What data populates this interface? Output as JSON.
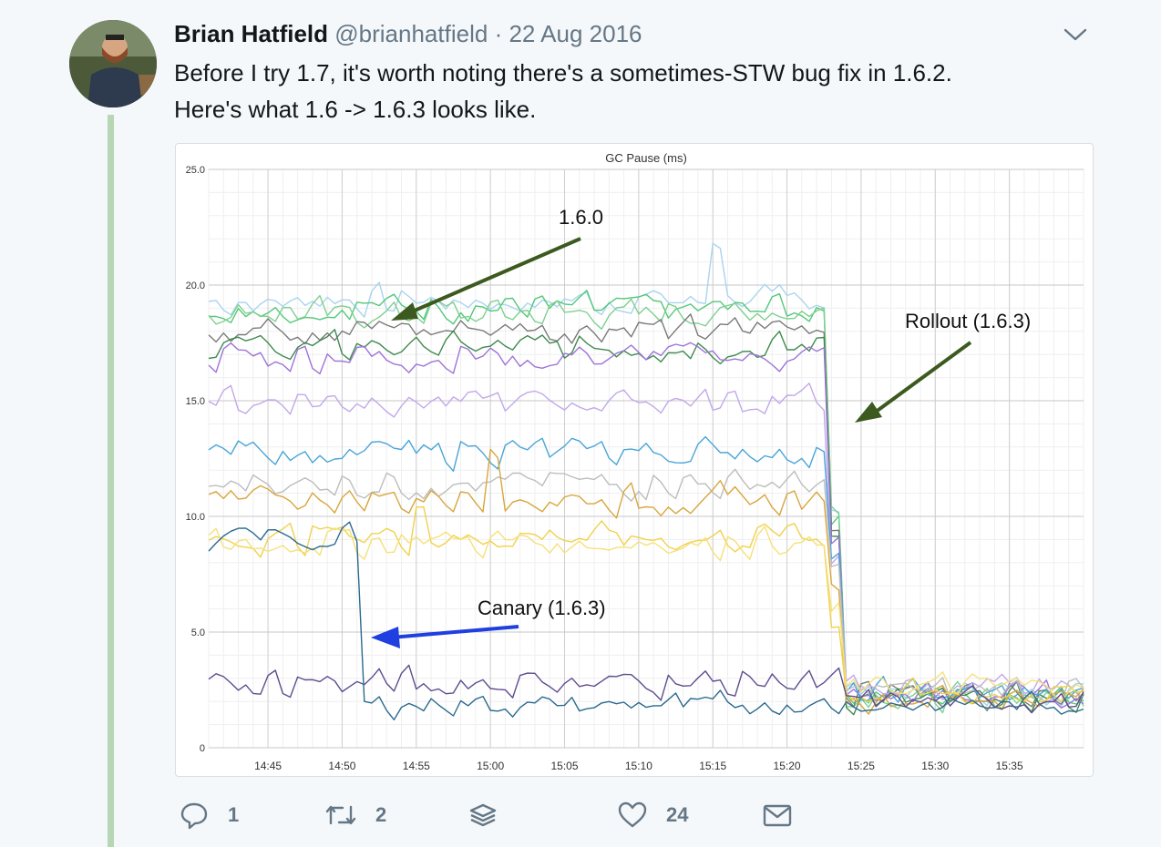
{
  "tweet": {
    "name": "Brian Hatfield",
    "handle": "@brianhatfield",
    "separator": "·",
    "date": "22 Aug 2016",
    "text_line1": "Before I try 1.7, it's worth noting there's a sometimes-STW bug fix in 1.6.2.",
    "text_line2": "Here's what 1.6 -> 1.6.3 looks like."
  },
  "actions": {
    "reply_count": "1",
    "retweet_count": "2",
    "like_count": "24"
  },
  "icons": [
    "avatar",
    "chevron-down-icon",
    "reply-icon",
    "retweet-icon",
    "layers-icon",
    "heart-icon",
    "mail-icon"
  ],
  "chart_data": {
    "type": "line",
    "title": "GC Pause (ms)",
    "ylim": [
      0,
      25
    ],
    "yticks": [
      "0",
      "5.0",
      "10.0",
      "15.0",
      "20.0",
      "25.0"
    ],
    "x_ticks": [
      "14:45",
      "14:50",
      "14:55",
      "15:00",
      "15:05",
      "15:10",
      "15:15",
      "15:20",
      "15:25",
      "15:30",
      "15:35"
    ],
    "x_start": "14:41",
    "x_end": "15:40",
    "grid": true,
    "annotations": {
      "label_160": "1.6.0",
      "label_rollout": "Rollout (1.6.3)",
      "label_canary": "Canary (1.6.3)"
    },
    "series": [
      {
        "color": "#a8d4ee",
        "pre": 19.3,
        "post": 2.4,
        "spike_time": "15:15",
        "spike_value": 21.8
      },
      {
        "color": "#52c87a",
        "pre": 19.0,
        "post": 2.2
      },
      {
        "color": "#7ed08f",
        "pre": 18.8,
        "post": 2.1
      },
      {
        "color": "#7a7a7a",
        "pre": 18.1,
        "post": 2.3
      },
      {
        "color": "#3f8a4e",
        "pre": 17.3,
        "post": 2.0
      },
      {
        "color": "#9d74d8",
        "pre": 16.9,
        "post": 2.2
      },
      {
        "color": "#c3a8ea",
        "pre": 15.0,
        "post": 2.5
      },
      {
        "color": "#49a5d8",
        "pre": 12.8,
        "post": 2.3
      },
      {
        "color": "#bdbdbd",
        "pre": 11.4,
        "post": 2.4
      },
      {
        "color": "#d8a63c",
        "pre": 10.7,
        "post": 2.1,
        "spike_time": "15:00",
        "spike_value": 12.9
      },
      {
        "color": "#f0d24a",
        "pre": 9.1,
        "post": 2.2,
        "spike_time": "14:55",
        "spike_value": 10.4
      },
      {
        "color": "#f6e07a",
        "pre": 8.9,
        "post": 2.6
      },
      {
        "color": "#5e4c8e",
        "pre": 2.8,
        "post": 2.0
      },
      {
        "color": "#2b6a8e",
        "pre": 9.0,
        "post": 1.8,
        "canary_drop_time": "14:51",
        "canary_level": 1.8
      }
    ]
  }
}
